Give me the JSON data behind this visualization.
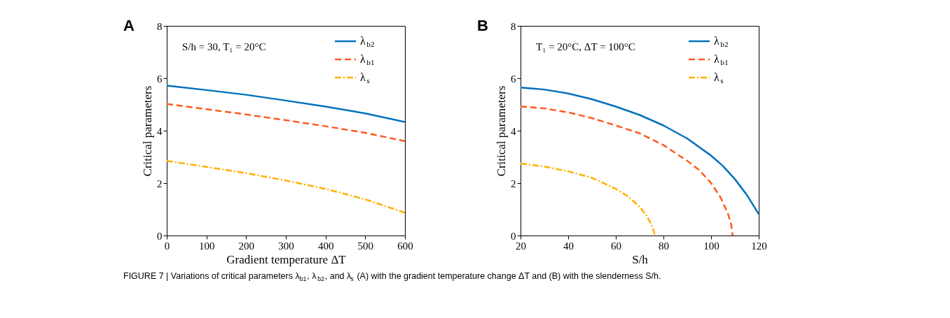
{
  "chart_data": [
    {
      "type": "line",
      "xlabel": "Gradient temperature ΔT",
      "ylabel": "Critical parameters",
      "xlim": [
        0,
        600
      ],
      "ylim": [
        0,
        8
      ],
      "xticks": [
        0,
        100,
        200,
        300,
        400,
        500,
        600
      ],
      "yticks": [
        0,
        2,
        4,
        6,
        8
      ],
      "grid": false,
      "legend": "top right",
      "annotations": [
        "A",
        "S/h = 30, T₁ = 20°C",
        "FIGURE 7 | Variations of critical parameters λ$_{b1}$, λ$_{b2}$, and λ$_{s}$ (A) with the gradient temperature change ΔT and (B) with the slenderness S/h."
      ],
      "series": [
        {
          "name": "λ$_{b2}$",
          "color": "#0072bd",
          "line_style": "solid",
          "x": [
            0,
            100,
            200,
            300,
            400,
            500,
            600
          ],
          "values": [
            5.72,
            5.55,
            5.37,
            5.15,
            4.92,
            4.66,
            4.33
          ]
        },
        {
          "name": "λ$_{b1}$",
          "color": "#ff5a1e",
          "line_style": "dashed",
          "x": [
            0,
            100,
            200,
            300,
            400,
            500,
            600
          ],
          "values": [
            5.02,
            4.82,
            4.62,
            4.4,
            4.17,
            3.92,
            3.6
          ]
        },
        {
          "name": "λ$_{s}$",
          "color": "#ffb000",
          "line_style": "dotted",
          "x": [
            0,
            100,
            200,
            300,
            400,
            500,
            600
          ],
          "values": [
            2.85,
            2.62,
            2.38,
            2.1,
            1.78,
            1.38,
            0.87
          ]
        }
      ]
    },
    {
      "type": "line",
      "xlabel": "S/h",
      "ylabel": "Critical parameters",
      "xlim": [
        20,
        120
      ],
      "ylim": [
        0,
        8
      ],
      "xticks": [
        20,
        40,
        60,
        80,
        100,
        120
      ],
      "yticks": [
        0,
        2,
        4,
        6,
        8
      ],
      "grid": false,
      "legend": "top right",
      "annotations": [
        "B",
        "T₁ = 20°C, ΔT = 100°C"
      ],
      "series": [
        {
          "name": "λ$_{b2}$",
          "color": "#0072bd",
          "line_style": "solid",
          "x": [
            20,
            30,
            40,
            50,
            60,
            70,
            80,
            90,
            100,
            105,
            110,
            115,
            120
          ],
          "values": [
            5.65,
            5.57,
            5.42,
            5.2,
            4.92,
            4.6,
            4.2,
            3.7,
            3.05,
            2.65,
            2.15,
            1.55,
            0.82
          ]
        },
        {
          "name": "λ$_{b1}$",
          "color": "#ff5a1e",
          "line_style": "dashed",
          "x": [
            20,
            30,
            40,
            50,
            60,
            70,
            80,
            90,
            95,
            100,
            104,
            107,
            108.5,
            109
          ],
          "values": [
            4.93,
            4.85,
            4.7,
            4.48,
            4.2,
            3.9,
            3.45,
            2.85,
            2.5,
            2.0,
            1.45,
            0.85,
            0.4,
            0
          ]
        },
        {
          "name": "λ$_{s}$",
          "color": "#ffb000",
          "line_style": "dotted",
          "x": [
            20,
            30,
            40,
            50,
            60,
            65,
            70,
            73,
            75,
            76,
            76.3
          ],
          "values": [
            2.75,
            2.63,
            2.45,
            2.2,
            1.78,
            1.5,
            1.1,
            0.75,
            0.4,
            0.15,
            0
          ]
        }
      ]
    }
  ]
}
